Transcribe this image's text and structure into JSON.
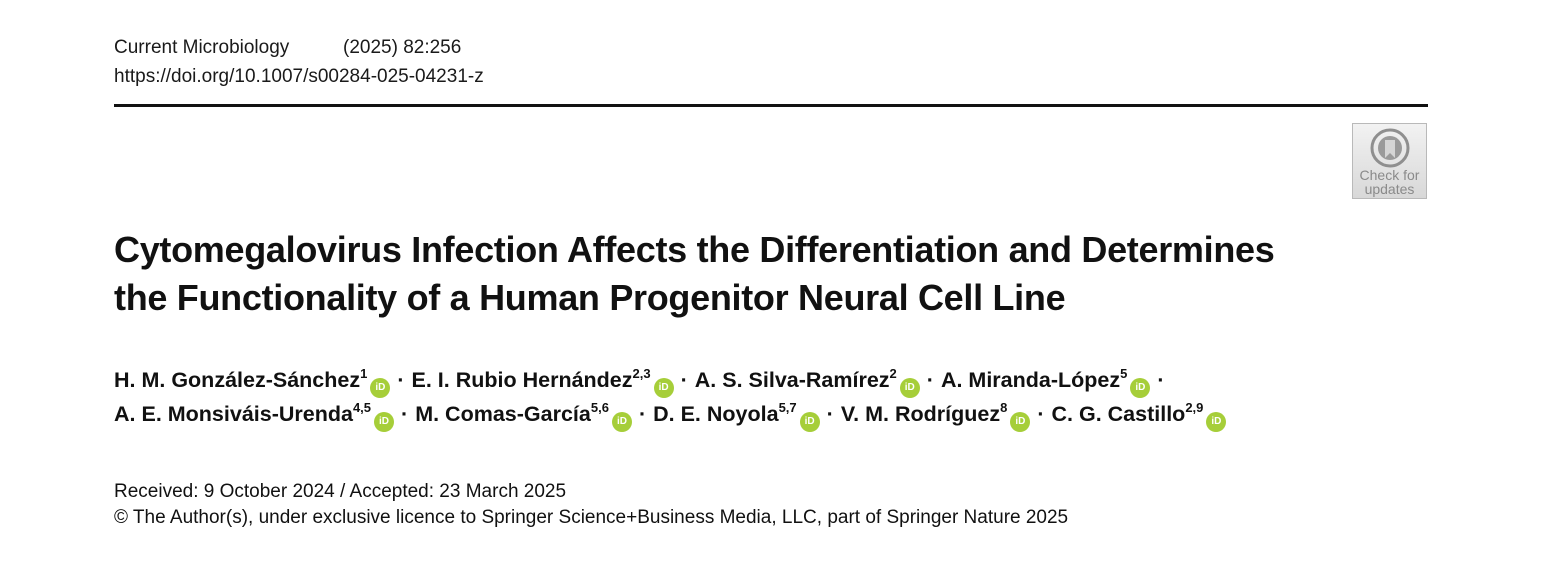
{
  "header": {
    "journal": "Current Microbiology",
    "citation": "(2025) 82:256",
    "doi": "https://doi.org/10.1007/s00284-025-04231-z"
  },
  "check_badge": {
    "line1": "Check for",
    "line2": "updates"
  },
  "title": {
    "line1": "Cytomegalovirus Infection Affects the Differentiation and Determines",
    "line2": "the Functionality of a Human Progenitor Neural Cell Line"
  },
  "authors": [
    {
      "name": "H. M. González-Sánchez",
      "aff": "1"
    },
    {
      "name": "E. I. Rubio Hernández",
      "aff": "2,3"
    },
    {
      "name": "A. S. Silva-Ramírez",
      "aff": "2"
    },
    {
      "name": "A. Miranda-López",
      "aff": "5"
    },
    {
      "name": "A. E. Monsiváis-Urenda",
      "aff": "4,5"
    },
    {
      "name": "M. Comas-García",
      "aff": "5,6"
    },
    {
      "name": "D. E. Noyola",
      "aff": "5,7"
    },
    {
      "name": "V. M. Rodríguez",
      "aff": "8"
    },
    {
      "name": "C. G. Castillo",
      "aff": "2,9"
    }
  ],
  "separator": "·",
  "orcid_label": "iD",
  "dates": {
    "received_accepted": "Received: 9 October 2024 / Accepted: 23 March 2025",
    "copyright": "© The Author(s), under exclusive licence to Springer Science+Business Media, LLC, part of Springer Nature 2025"
  },
  "colors": {
    "orcid": "#a6ce39",
    "rule": "#111111"
  },
  "icons": {
    "orcid": "orcid-icon",
    "check_updates": "check-for-updates-icon"
  }
}
